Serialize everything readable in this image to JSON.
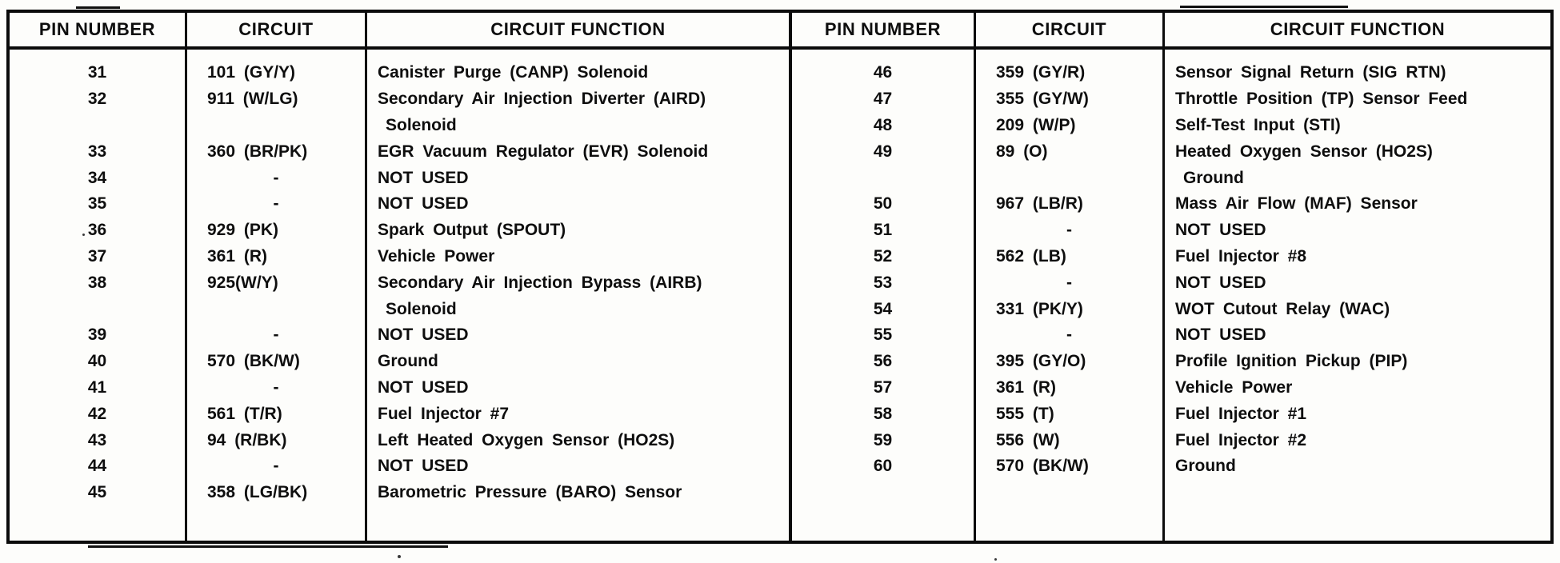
{
  "table": {
    "headers": [
      "PIN NUMBER",
      "CIRCUIT",
      "CIRCUIT FUNCTION"
    ],
    "left": {
      "lines": [
        {
          "pin": "31",
          "circuit": "101 (GY/Y)",
          "func": "Canister Purge (CANP) Solenoid"
        },
        {
          "pin": "32",
          "circuit": "911 (W/LG)",
          "func": "Secondary Air Injection Diverter (AIRD)"
        },
        {
          "pin": "",
          "circuit": "",
          "func": "Solenoid",
          "indent": true
        },
        {
          "pin": "33",
          "circuit": "360 (BR/PK)",
          "func": "EGR Vacuum Regulator (EVR) Solenoid"
        },
        {
          "pin": "34",
          "circuit": "-",
          "func": "NOT USED"
        },
        {
          "pin": "35",
          "circuit": "-",
          "func": "NOT USED"
        },
        {
          "pin": "36",
          "circuit": "929 (PK)",
          "func": "Spark Output (SPOUT)"
        },
        {
          "pin": "37",
          "circuit": "361 (R)",
          "func": "Vehicle Power"
        },
        {
          "pin": "38",
          "circuit": "925(W/Y)",
          "func": "Secondary Air Injection Bypass (AIRB)"
        },
        {
          "pin": "",
          "circuit": "",
          "func": "Solenoid",
          "indent": true
        },
        {
          "pin": "39",
          "circuit": "-",
          "func": "NOT USED"
        },
        {
          "pin": "40",
          "circuit": "570 (BK/W)",
          "func": "Ground"
        },
        {
          "pin": "41",
          "circuit": "-",
          "func": "NOT USED"
        },
        {
          "pin": "42",
          "circuit": "561 (T/R)",
          "func": "Fuel Injector #7"
        },
        {
          "pin": "43",
          "circuit": "94 (R/BK)",
          "func": "Left Heated Oxygen Sensor (HO2S)"
        },
        {
          "pin": "44",
          "circuit": "-",
          "func": "NOT USED"
        },
        {
          "pin": "45",
          "circuit": "358 (LG/BK)",
          "func": "Barometric Pressure (BARO) Sensor"
        }
      ]
    },
    "right": {
      "lines": [
        {
          "pin": "46",
          "circuit": "359 (GY/R)",
          "func": "Sensor Signal Return (SIG RTN)"
        },
        {
          "pin": "47",
          "circuit": "355 (GY/W)",
          "func": "Throttle Position (TP) Sensor Feed"
        },
        {
          "pin": "48",
          "circuit": "209 (W/P)",
          "func": "Self-Test Input (STI)"
        },
        {
          "pin": "49",
          "circuit": "89 (O)",
          "func": "Heated Oxygen Sensor (HO2S)"
        },
        {
          "pin": "",
          "circuit": "",
          "func": "Ground",
          "indent": true
        },
        {
          "pin": "50",
          "circuit": "967 (LB/R)",
          "func": "Mass Air Flow (MAF) Sensor"
        },
        {
          "pin": "51",
          "circuit": "-",
          "func": "NOT USED"
        },
        {
          "pin": "52",
          "circuit": "562 (LB)",
          "func": "Fuel Injector #8"
        },
        {
          "pin": "53",
          "circuit": "-",
          "func": "NOT USED"
        },
        {
          "pin": "54",
          "circuit": "331 (PK/Y)",
          "func": "WOT Cutout Relay (WAC)"
        },
        {
          "pin": "55",
          "circuit": "-",
          "func": "NOT USED"
        },
        {
          "pin": "56",
          "circuit": "395 (GY/O)",
          "func": "Profile Ignition Pickup (PIP)"
        },
        {
          "pin": "57",
          "circuit": "361 (R)",
          "func": "Vehicle Power"
        },
        {
          "pin": "58",
          "circuit": "555 (T)",
          "func": "Fuel Injector #1"
        },
        {
          "pin": "59",
          "circuit": "556 (W)",
          "func": "Fuel Injector #2"
        },
        {
          "pin": "60",
          "circuit": "570 (BK/W)",
          "func": "Ground"
        }
      ]
    }
  },
  "colors": {
    "ink": "#0e0e0e",
    "paper": "#fdfdfb"
  }
}
